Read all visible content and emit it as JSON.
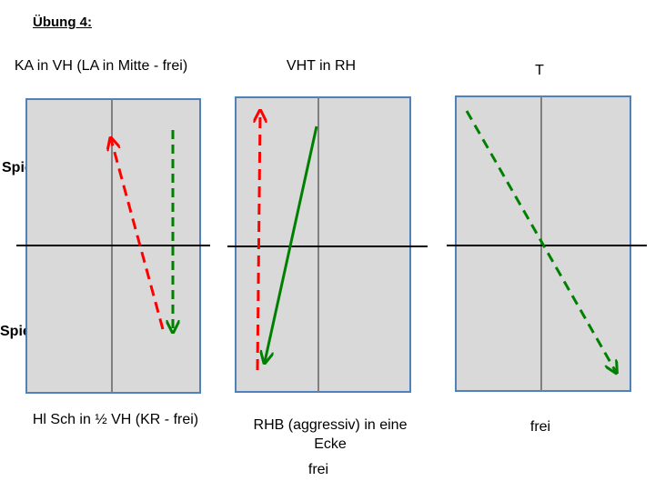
{
  "title": "Übung 4:",
  "players": {
    "a": "Spieler A",
    "b": "Spieler B"
  },
  "diagrams": [
    {
      "top_label": "KA in VH (LA in Mitte - frei)",
      "bottom_label": "Hl Sch in ½ VH (KR - frei)"
    },
    {
      "top_label": "VHT in RH",
      "bottom_label": "RHB (aggressiv) in eine Ecke",
      "bottom_label_2": "frei"
    },
    {
      "top_label": "T",
      "bottom_label": "frei"
    }
  ],
  "colors": {
    "table_fill": "#d9d9d9",
    "table_border": "#4f81bd",
    "center_line": "#808080",
    "net": "#000000",
    "red_arrow": "#ff0000",
    "green_arrow": "#008000"
  }
}
